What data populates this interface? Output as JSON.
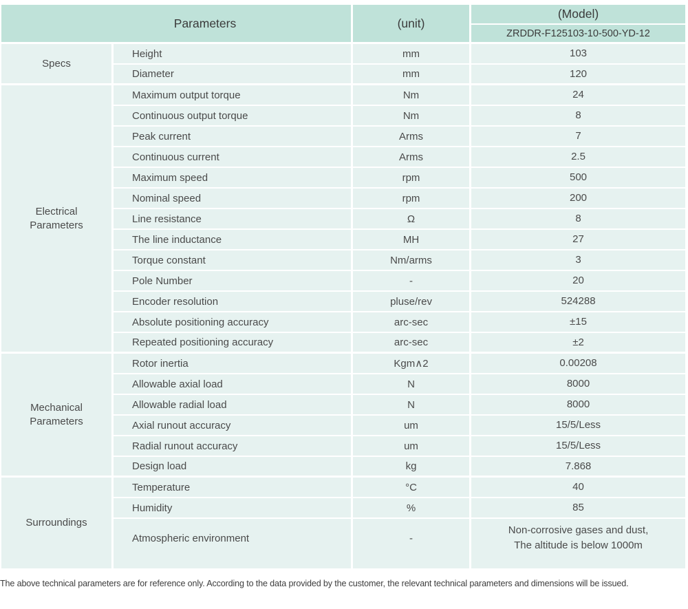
{
  "colors": {
    "header_bg": "#bfe2d9",
    "row_bg": "#e6f2f0"
  },
  "header": {
    "parameters_label": "Parameters",
    "unit_label": "(unit)",
    "model_label": "(Model)",
    "model_number": "ZRDDR-F125103-10-500-YD-12"
  },
  "sections": [
    {
      "label": "Specs",
      "label_lines": [
        "Specs",
        ""
      ],
      "rows": [
        {
          "parameter": "Height",
          "unit": "mm",
          "value": "103"
        },
        {
          "parameter": "Diameter",
          "unit": "mm",
          "value": "120"
        }
      ]
    },
    {
      "label": "Electrical Parameters",
      "label_lines": [
        "Electrical",
        "Parameters"
      ],
      "rows": [
        {
          "parameter": "Maximum output torque",
          "unit": "Nm",
          "value": "24"
        },
        {
          "parameter": "Continuous output torque",
          "unit": "Nm",
          "value": "8"
        },
        {
          "parameter": "Peak current",
          "unit": "Arms",
          "value": "7"
        },
        {
          "parameter": "Continuous current",
          "unit": "Arms",
          "value": "2.5"
        },
        {
          "parameter": "Maximum speed",
          "unit": "rpm",
          "value": "500"
        },
        {
          "parameter": "Nominal speed",
          "unit": "rpm",
          "value": "200"
        },
        {
          "parameter": "Line resistance",
          "unit": "Ω",
          "value": "8"
        },
        {
          "parameter": "The line inductance",
          "unit": "MH",
          "value": "27"
        },
        {
          "parameter": "Torque constant",
          "unit": "Nm/arms",
          "value": "3"
        },
        {
          "parameter": "Pole Number",
          "unit": "-",
          "value": "20"
        },
        {
          "parameter": "Encoder resolution",
          "unit": "pluse/rev",
          "value": "524288"
        },
        {
          "parameter": "Absolute positioning accuracy",
          "unit": "arc-sec",
          "value": "±15"
        },
        {
          "parameter": "Repeated positioning accuracy",
          "unit": "arc-sec",
          "value": "±2"
        }
      ]
    },
    {
      "label": "Mechanical Parameters",
      "label_lines": [
        "Mechanical",
        "Parameters"
      ],
      "rows": [
        {
          "parameter": "Rotor inertia",
          "unit": "Kgm∧2",
          "value": "0.00208"
        },
        {
          "parameter": "Allowable axial load",
          "unit": "N",
          "value": "8000"
        },
        {
          "parameter": "Allowable radial load",
          "unit": "N",
          "value": "8000"
        },
        {
          "parameter": "Axial runout accuracy",
          "unit": "um",
          "value": "15/5/Less"
        },
        {
          "parameter": "Radial runout accuracy",
          "unit": "um",
          "value": "15/5/Less"
        },
        {
          "parameter": "Design load",
          "unit": "kg",
          "value": "7.868"
        }
      ]
    },
    {
      "label": "Surroundings",
      "label_lines": [
        "Surroundings",
        ""
      ],
      "rows": [
        {
          "parameter": "Temperature",
          "unit": "°C",
          "value": "40"
        },
        {
          "parameter": "Humidity",
          "unit": "%",
          "value": "85"
        },
        {
          "parameter": "Atmospheric environment",
          "unit": "-",
          "value": "",
          "value_lines": [
            "Non-corrosive gases and dust,",
            "The altitude is below 1000m"
          ]
        }
      ]
    }
  ],
  "footer_note": "The above technical parameters are for reference only. According to the data provided by the customer, the relevant technical parameters and dimensions will be issued."
}
